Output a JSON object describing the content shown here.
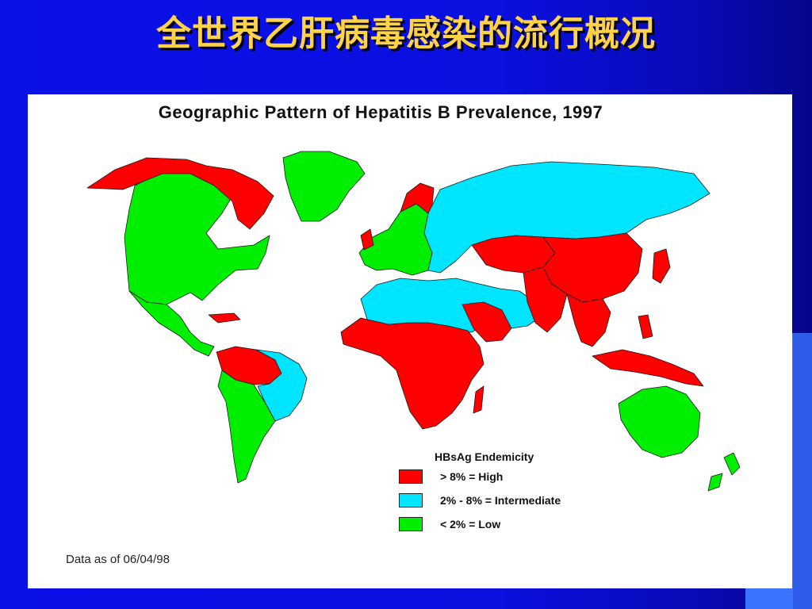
{
  "slide": {
    "title": "全世界乙肝病毒感染的流行概况"
  },
  "map": {
    "title": "Geographic Pattern of Hepatitis B Prevalence, 1997",
    "note": "Data as of 06/04/98",
    "colors": {
      "high": "#ff0000",
      "intermediate": "#00e5ff",
      "low": "#00ee00",
      "border": "#1a1a1a"
    },
    "legend": {
      "title": "HBsAg Endemicity",
      "items": [
        {
          "label": ">  8%   = High",
          "color": "#ff0000"
        },
        {
          "label": "2%  - 8% = Intermediate",
          "color": "#00e5ff"
        },
        {
          "label": "<  2%    = Low",
          "color": "#00ee00"
        }
      ]
    },
    "regions": [
      {
        "name": "North America",
        "level": "low"
      },
      {
        "name": "Canadian Arctic",
        "level": "high"
      },
      {
        "name": "Alaska",
        "level": "high"
      },
      {
        "name": "Greenland",
        "level": "low"
      },
      {
        "name": "Central America",
        "level": "low"
      },
      {
        "name": "Amazon Basin",
        "level": "high"
      },
      {
        "name": "Brazil",
        "level": "intermediate"
      },
      {
        "name": "Southern South America",
        "level": "low"
      },
      {
        "name": "Western Europe",
        "level": "low"
      },
      {
        "name": "Eastern Europe and Russia",
        "level": "intermediate"
      },
      {
        "name": "North Africa and Middle East",
        "level": "intermediate"
      },
      {
        "name": "Arabian Peninsula",
        "level": "high"
      },
      {
        "name": "Sub-Saharan Africa",
        "level": "high"
      },
      {
        "name": "Central Asia",
        "level": "high"
      },
      {
        "name": "China",
        "level": "high"
      },
      {
        "name": "Southeast Asia",
        "level": "high"
      },
      {
        "name": "Australia",
        "level": "low"
      },
      {
        "name": "New Zealand",
        "level": "low"
      }
    ]
  }
}
